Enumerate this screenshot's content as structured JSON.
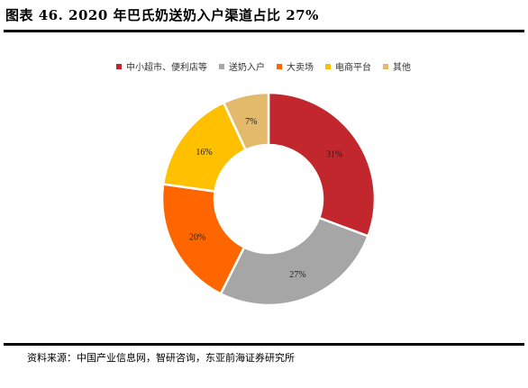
{
  "header": {
    "title": "图表 46. 2020 年巴氏奶送奶入户渠道占比 27%"
  },
  "footer": {
    "source": "资料来源：中国产业信息网，智研咨询，东亚前海证券研究所"
  },
  "chart_data": {
    "type": "pie",
    "donut": true,
    "title": "",
    "legend_position": "top",
    "slices": [
      {
        "name": "中小超市、便利店等",
        "value": 31,
        "label": "31%",
        "color": "#c1272d"
      },
      {
        "name": "送奶入户",
        "value": 27,
        "label": "27%",
        "color": "#a6a6a6"
      },
      {
        "name": "大卖场",
        "value": 20,
        "label": "20%",
        "color": "#ff6600"
      },
      {
        "name": "电商平台",
        "value": 16,
        "label": "16%",
        "color": "#ffc000"
      },
      {
        "name": "其他",
        "value": 7,
        "label": "7%",
        "color": "#e3b96b"
      }
    ]
  }
}
